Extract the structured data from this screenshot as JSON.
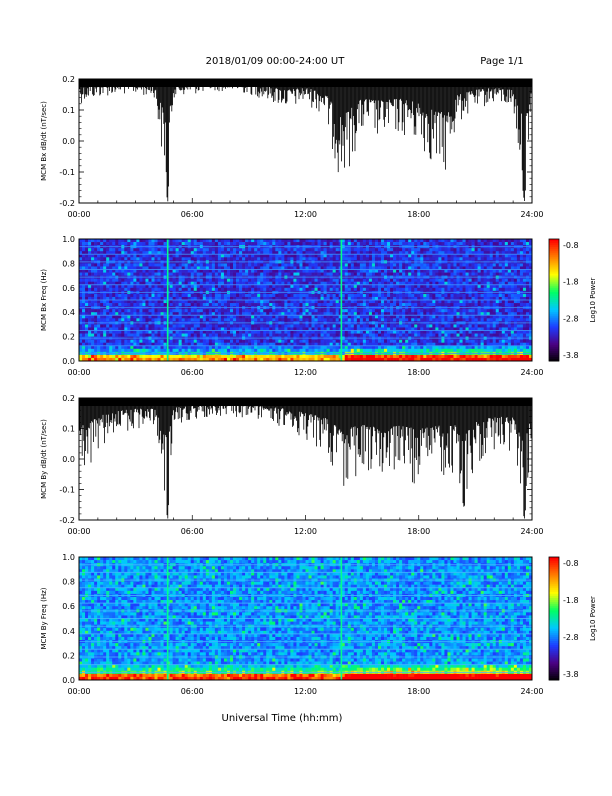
{
  "header": {
    "date_range": "2018/01/09  00:00-24:00 UT",
    "page": "Page 1/1"
  },
  "footer": {
    "xlabel": "Universal Time (hh:mm)"
  },
  "colors": {
    "trace": "#000000",
    "colormap": [
      "#000000",
      "#4b0082",
      "#1e3cff",
      "#00c8ff",
      "#00ff64",
      "#ffff00",
      "#ff8000",
      "#ff0000"
    ]
  },
  "chart_data": [
    {
      "type": "line",
      "ylabel": "MCM Bx dB/dt (nT/sec)",
      "x_ticks": [
        "00:00",
        "06:00",
        "12:00",
        "18:00",
        "24:00"
      ],
      "y_ticks": [
        "0.2",
        "0.1",
        "0.0",
        "-0.1",
        "-0.2"
      ],
      "xlim": [
        0,
        24
      ],
      "ylim": [
        -0.2,
        0.2
      ],
      "series": [
        {
          "x": [
            0,
            1,
            2,
            3,
            4,
            4.7,
            5,
            6,
            7,
            8,
            9,
            10,
            11,
            12,
            13,
            13.9,
            15,
            16,
            17,
            18,
            18.5,
            19,
            19.5,
            20,
            21,
            22,
            23,
            23.6,
            24
          ],
          "upper": [
            0.2,
            0.2,
            0.2,
            0.2,
            0.2,
            0.2,
            0.2,
            0.2,
            0.2,
            0.2,
            0.2,
            0.2,
            0.2,
            0.2,
            0.2,
            0.2,
            0.2,
            0.2,
            0.2,
            0.2,
            0.2,
            0.2,
            0.2,
            0.2,
            0.2,
            0.2,
            0.2,
            0.2,
            0.2
          ],
          "lower": [
            0.12,
            0.14,
            0.15,
            0.15,
            0.14,
            -0.2,
            0.14,
            0.15,
            0.16,
            0.16,
            0.15,
            0.13,
            0.1,
            0.12,
            0.08,
            -0.15,
            0.02,
            0.0,
            0.02,
            -0.02,
            -0.06,
            -0.1,
            -0.11,
            0.05,
            0.1,
            0.12,
            0.1,
            -0.2,
            0.12
          ]
        }
      ]
    },
    {
      "type": "heatmap",
      "ylabel": "MCM Bx Freq (Hz)",
      "x_ticks": [
        "00:00",
        "06:00",
        "12:00",
        "18:00",
        "24:00"
      ],
      "y_ticks": [
        "1.0",
        "0.8",
        "0.6",
        "0.4",
        "0.2",
        "0.0"
      ],
      "xlim": [
        0,
        24
      ],
      "ylim": [
        0.0,
        1.0
      ],
      "colorbar": {
        "label": "Log10 Power",
        "ticks": [
          "-0.8",
          "-1.8",
          "-2.8",
          "-3.8"
        ],
        "range": [
          -3.8,
          -0.8
        ]
      },
      "spike_times": [
        4.7,
        13.9
      ],
      "harmonic_lines_hz": [
        0.0625,
        0.125,
        0.1875,
        0.25,
        0.3125,
        0.375,
        0.4375,
        0.5,
        0.5625,
        0.625,
        0.6875,
        0.75,
        0.8125,
        0.875,
        0.9375
      ]
    },
    {
      "type": "line",
      "ylabel": "MCM By dB/dt (nT/sec)",
      "x_ticks": [
        "00:00",
        "06:00",
        "12:00",
        "18:00",
        "24:00"
      ],
      "y_ticks": [
        "0.2",
        "0.1",
        "0.0",
        "-0.1",
        "-0.2"
      ],
      "xlim": [
        0,
        24
      ],
      "ylim": [
        -0.2,
        0.2
      ],
      "series": [
        {
          "x": [
            0,
            0.3,
            1,
            2,
            3,
            4,
            4.7,
            5,
            6,
            7,
            8,
            9,
            10,
            11,
            12,
            13,
            13.9,
            15,
            16,
            17,
            18,
            19,
            20,
            20.4,
            21,
            22,
            23,
            23.6,
            24
          ],
          "upper": [
            0.2,
            0.2,
            0.2,
            0.2,
            0.2,
            0.2,
            0.2,
            0.2,
            0.2,
            0.2,
            0.2,
            0.2,
            0.2,
            0.2,
            0.2,
            0.2,
            0.2,
            0.2,
            0.2,
            0.2,
            0.2,
            0.2,
            0.2,
            0.2,
            0.2,
            0.2,
            0.2,
            0.2,
            0.2
          ],
          "lower": [
            0.1,
            -0.06,
            0.03,
            0.08,
            0.1,
            0.1,
            -0.2,
            0.11,
            0.13,
            0.14,
            0.14,
            0.13,
            0.12,
            0.1,
            0.06,
            0.02,
            -0.1,
            -0.05,
            -0.08,
            -0.06,
            -0.09,
            -0.06,
            -0.05,
            -0.16,
            -0.02,
            0.03,
            0.02,
            -0.2,
            0.05
          ]
        }
      ]
    },
    {
      "type": "heatmap",
      "ylabel": "MCM By Freq (Hz)",
      "x_ticks": [
        "00:00",
        "06:00",
        "12:00",
        "18:00",
        "24:00"
      ],
      "y_ticks": [
        "1.0",
        "0.8",
        "0.6",
        "0.4",
        "0.2",
        "0.0"
      ],
      "xlim": [
        0,
        24
      ],
      "ylim": [
        0.0,
        1.0
      ],
      "colorbar": {
        "label": "Log10 Power",
        "ticks": [
          "-0.8",
          "-1.8",
          "-2.8",
          "-3.8"
        ],
        "range": [
          -3.8,
          -0.8
        ]
      },
      "spike_times": [
        4.7,
        13.9
      ],
      "harmonic_lines_hz": [
        0.0625,
        0.125,
        0.1875,
        0.25,
        0.3125,
        0.375,
        0.4375,
        0.5,
        0.5625,
        0.625,
        0.6875,
        0.75,
        0.8125,
        0.875,
        0.9375
      ]
    }
  ]
}
